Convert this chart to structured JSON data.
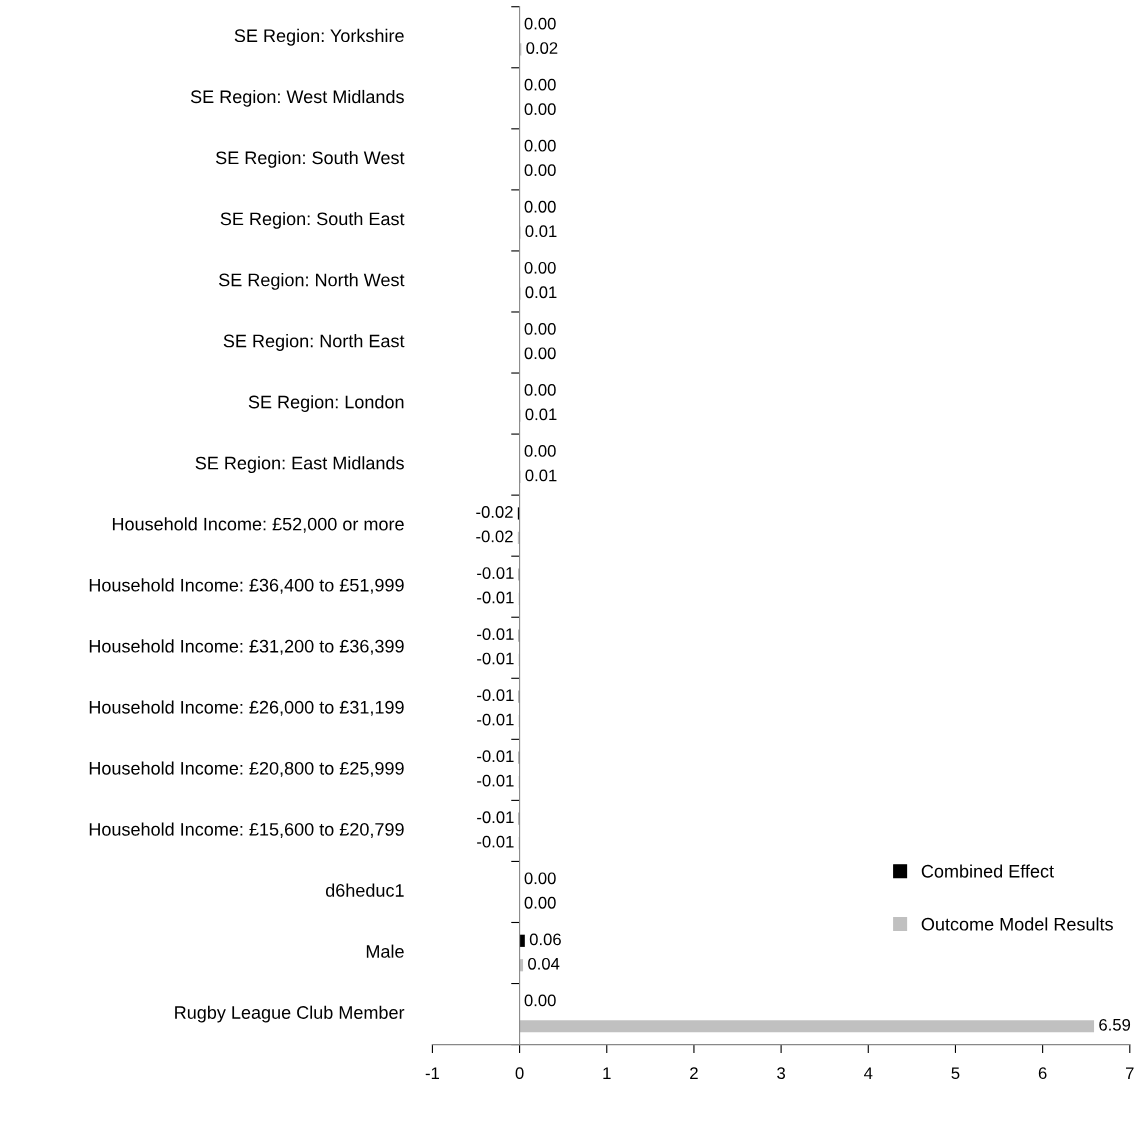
{
  "chart_data": {
    "type": "bar",
    "orientation": "horizontal",
    "categories": [
      "SE Region: Yorkshire",
      "SE Region: West Midlands",
      "SE Region: South West",
      "SE Region: South East",
      "SE Region: North West",
      "SE Region: North East",
      "SE Region: London",
      "SE Region: East Midlands",
      "Household Income: £52,000 or more",
      "Household Income: £36,400 to £51,999",
      "Household Income: £31,200 to £36,399",
      "Household Income: £26,000 to £31,199",
      "Household Income: £20,800 to £25,999",
      "Household Income: £15,600 to £20,799",
      "d6heduc1",
      "Male",
      "Rugby League Club Member"
    ],
    "series": [
      {
        "name": "Combined Effect",
        "color": "#000000",
        "values": [
          0,
          0,
          0,
          0,
          0,
          0,
          0,
          0,
          -0.02,
          -0.01,
          -0.01,
          -0.01,
          -0.01,
          -0.01,
          0,
          0.06,
          0
        ],
        "value_labels": [
          "0.00",
          "0.00",
          "0.00",
          "0.00",
          "0.00",
          "0.00",
          "0.00",
          "0.00",
          "-0.02",
          "-0.01",
          "-0.01",
          "-0.01",
          "-0.01",
          "-0.01",
          "0.00",
          "0.06",
          "0.00"
        ]
      },
      {
        "name": "Outcome Model Results",
        "color": "#c0c0c0",
        "values": [
          0.02,
          0,
          0,
          0.01,
          0.01,
          0,
          0.01,
          0.01,
          -0.02,
          -0.01,
          -0.01,
          -0.01,
          -0.01,
          -0.01,
          0,
          0.04,
          6.59
        ],
        "value_labels": [
          "0.02",
          "0.00",
          "0.00",
          "0.01",
          "0.01",
          "0.00",
          "0.01",
          "0.01",
          "-0.02",
          "-0.01",
          "-0.01",
          "-0.01",
          "-0.01",
          "-0.01",
          "0.00",
          "0.04",
          "6.59"
        ]
      }
    ],
    "xlim": [
      -1,
      7
    ],
    "xticks": [
      -1,
      0,
      1,
      2,
      3,
      4,
      5,
      6,
      7
    ],
    "legend": "right"
  }
}
